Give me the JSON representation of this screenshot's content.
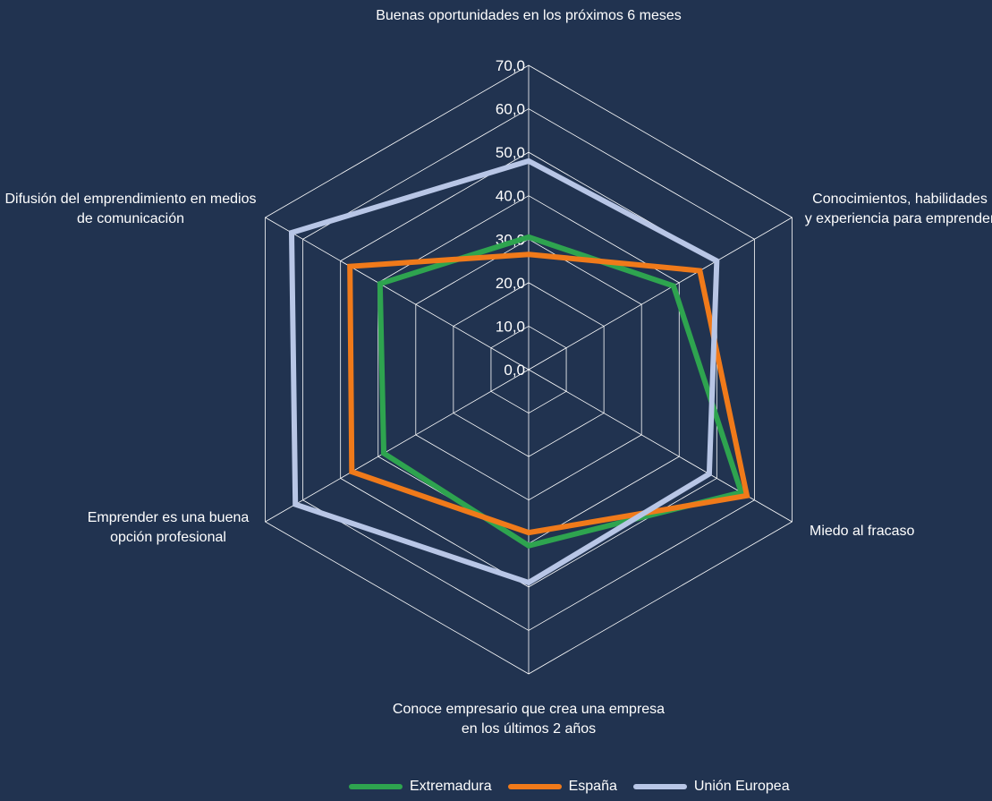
{
  "chart_data": {
    "type": "radar",
    "axes": [
      "Buenas oportunidades en los próximos 6 meses",
      "Conocimientos, habilidades y experiencia para emprender",
      "Miedo al fracaso",
      "Conoce empresario que crea una empresa en los últimos 2 años",
      "Emprender es una buena opción profesional",
      "Difusión del emprendimiento en medios de comunicación"
    ],
    "axis_label_lines": [
      [
        "Buenas oportunidades en los próximos 6 meses"
      ],
      [
        "Conocimientos, habilidades",
        "y experiencia para emprender"
      ],
      [
        "Miedo al fracaso"
      ],
      [
        "Conoce empresario que crea una empresa",
        "en los últimos 2 años"
      ],
      [
        "Emprender es una buena",
        "opción profesional"
      ],
      [
        "Difusión del emprendimiento en medios",
        "de comunicación"
      ]
    ],
    "rmin": 0,
    "rmax": 70,
    "ticks": [
      "0,0",
      "10,0",
      "20,0",
      "30,0",
      "40,0",
      "50,0",
      "60,0",
      "70,0"
    ],
    "tick_values": [
      0,
      10,
      20,
      30,
      40,
      50,
      60,
      70
    ],
    "grid": true,
    "legend_position": "bottom",
    "series": [
      {
        "name": "Extremadura",
        "color": "#2ea44f",
        "values": [
          30.5,
          38.5,
          56.5,
          40.5,
          38.5,
          39.5
        ]
      },
      {
        "name": "España",
        "color": "#f07a1a",
        "values": [
          26.5,
          45.5,
          58.0,
          37.5,
          47.0,
          47.5
        ]
      },
      {
        "name": "Unión Europea",
        "color": "#b8c6e6",
        "values": [
          48.0,
          50.0,
          48.0,
          49.0,
          62.0,
          63.0
        ]
      }
    ]
  }
}
